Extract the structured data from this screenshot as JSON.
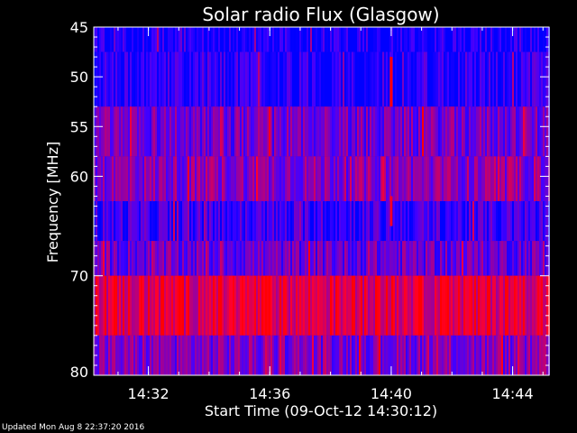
{
  "chart_data": {
    "type": "heatmap",
    "title": "Solar radio Flux (Glasgow)",
    "xlabel": "Start Time (09-Oct-12 14:30:12)",
    "ylabel": "Frequency [MHz]",
    "y_ticks": [
      45,
      50,
      55,
      60,
      70,
      80
    ],
    "x_ticks": [
      "14:32",
      "14:36",
      "14:40",
      "14:44"
    ],
    "x_range_minutes": [
      0,
      15
    ],
    "start_time": "14:30:12",
    "ylim": [
      45,
      80
    ],
    "grid": false,
    "bands": [
      {
        "freq_from": 45,
        "freq_to": 47.5,
        "level": 0.05
      },
      {
        "freq_from": 47.5,
        "freq_to": 53,
        "level": 0.12
      },
      {
        "freq_from": 53,
        "freq_to": 58,
        "level": 0.38
      },
      {
        "freq_from": 58,
        "freq_to": 62.5,
        "level": 0.45
      },
      {
        "freq_from": 62.5,
        "freq_to": 66.5,
        "level": 0.18
      },
      {
        "freq_from": 66.5,
        "freq_to": 70,
        "level": 0.35
      },
      {
        "freq_from": 70,
        "freq_to": 76,
        "level": 0.78
      },
      {
        "freq_from": 76,
        "freq_to": 80,
        "level": 0.42
      }
    ],
    "bursts": [
      {
        "time": "14:40:00",
        "freq_from": 48,
        "freq_to": 53,
        "level": 1.0
      },
      {
        "time": "14:40:00",
        "freq_from": 62,
        "freq_to": 65,
        "level": 0.9
      }
    ]
  },
  "footer": {
    "updated": "Updated Mon Aug  8 22:37:20 2016"
  },
  "colors": {
    "background": "#000000",
    "low": "#0000ff",
    "high": "#ff0000",
    "text": "#ffffff"
  }
}
